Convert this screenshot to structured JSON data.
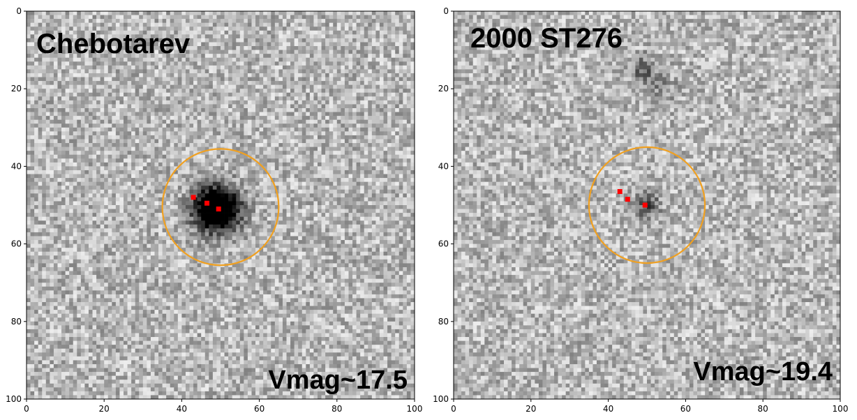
{
  "chart_data": [
    {
      "type": "heatmap",
      "colormap": "gray",
      "title": "Chebotarev",
      "annotation": "Vmag~17.5",
      "xlim": [
        0,
        100
      ],
      "ylim": [
        100,
        0
      ],
      "xticks": [
        0,
        20,
        40,
        60,
        80,
        100
      ],
      "yticks": [
        0,
        20,
        40,
        60,
        80,
        100
      ],
      "xtick_labels": [
        "0",
        "20",
        "40",
        "60",
        "80",
        "100"
      ],
      "ytick_labels": [
        "0",
        "20",
        "40",
        "60",
        "80",
        "100"
      ],
      "source": {
        "x": 49,
        "y": 51,
        "radius": 4,
        "depth": 0.85
      },
      "faint_sources": [],
      "aperture": {
        "x": 50,
        "y": 50.5,
        "radius": 15,
        "color": "#f0a020"
      },
      "markers": [
        {
          "x": 43,
          "y": 48
        },
        {
          "x": 46.5,
          "y": 49.5
        },
        {
          "x": 49.5,
          "y": 51
        }
      ],
      "marker_color": "#ff0000"
    },
    {
      "type": "heatmap",
      "colormap": "gray",
      "title": "2000 ST276",
      "annotation": "Vmag~19.4",
      "xlim": [
        0,
        100
      ],
      "ylim": [
        100,
        0
      ],
      "xticks": [
        0,
        20,
        40,
        60,
        80,
        100
      ],
      "yticks": [
        0,
        20,
        40,
        60,
        80,
        100
      ],
      "xtick_labels": [
        "0",
        "20",
        "40",
        "60",
        "80",
        "100"
      ],
      "ytick_labels": [
        "0",
        "20",
        "40",
        "60",
        "80",
        "100"
      ],
      "source": {
        "x": 50,
        "y": 50,
        "radius": 2.2,
        "depth": 0.28
      },
      "faint_sources": [
        {
          "x": 49,
          "y": 15,
          "radius": 2.5,
          "depth": 0.2
        },
        {
          "x": 54,
          "y": 20,
          "radius": 2.5,
          "depth": 0.1
        }
      ],
      "aperture": {
        "x": 50,
        "y": 50,
        "radius": 15,
        "color": "#f0a020"
      },
      "markers": [
        {
          "x": 43,
          "y": 46.5
        },
        {
          "x": 45,
          "y": 48.5
        },
        {
          "x": 49.5,
          "y": 50
        }
      ],
      "marker_color": "#ff0000"
    }
  ]
}
